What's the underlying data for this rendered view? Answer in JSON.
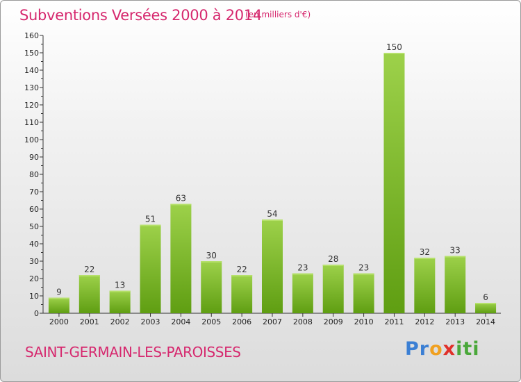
{
  "header": {
    "title": "Subventions Versées 2000 à 2014",
    "unit_note": "(en milliers d'€)"
  },
  "footer": {
    "commune": "SAINT-GERMAIN-LES-PAROISSES",
    "logo_parts": [
      "Pr",
      "o",
      "x",
      "iti"
    ]
  },
  "colors": {
    "title": "#d6286e",
    "bar_top": "#9dd14a",
    "bar_bottom": "#5f9e12"
  },
  "chart_data": {
    "type": "bar",
    "categories": [
      "2000",
      "2001",
      "2002",
      "2003",
      "2004",
      "2005",
      "2006",
      "2007",
      "2008",
      "2009",
      "2010",
      "2011",
      "2012",
      "2013",
      "2014"
    ],
    "values": [
      9,
      22,
      13,
      51,
      63,
      30,
      22,
      54,
      23,
      28,
      23,
      150,
      32,
      33,
      6
    ],
    "ylim": [
      0,
      160
    ],
    "yticks": [
      0,
      10,
      20,
      30,
      40,
      50,
      60,
      70,
      80,
      90,
      100,
      110,
      120,
      130,
      140,
      150,
      160
    ],
    "grid": false,
    "data_labels": true
  }
}
